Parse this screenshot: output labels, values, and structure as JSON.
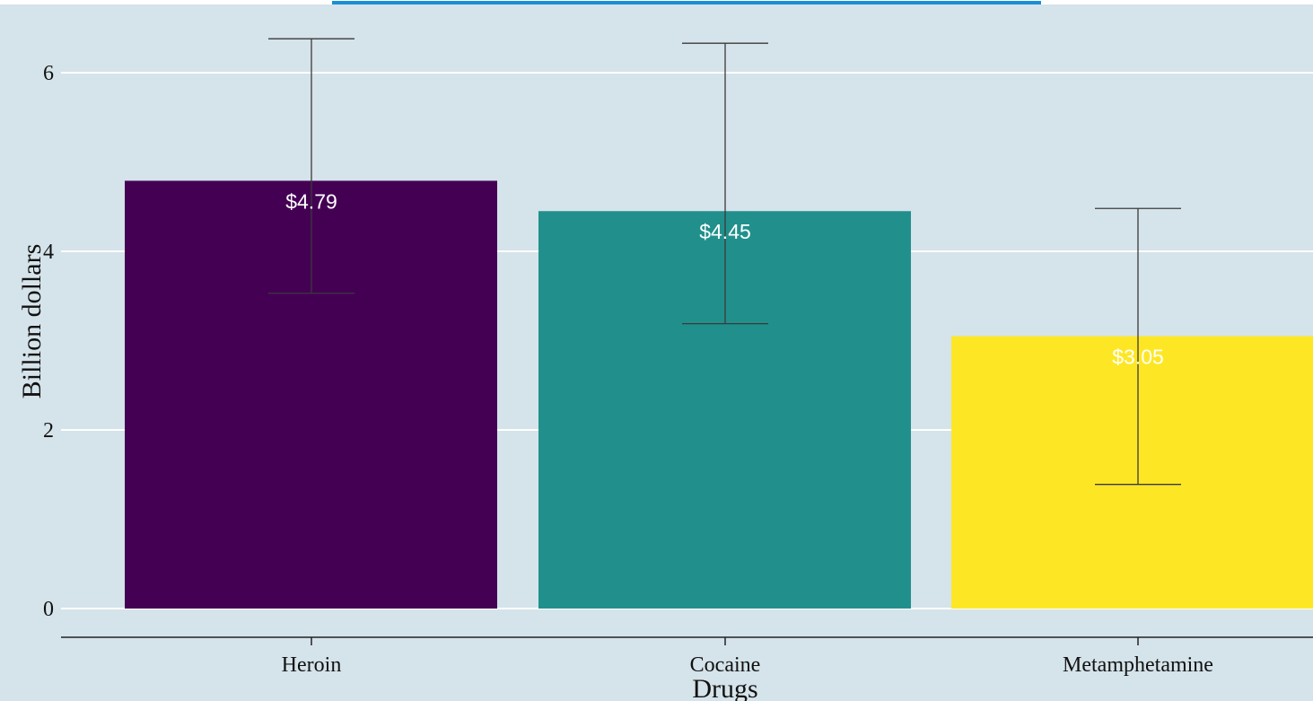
{
  "chart_data": {
    "type": "bar",
    "title": "",
    "xlabel": "Drugs",
    "ylabel": "Billion dollars",
    "ylim": [
      -0.33,
      6.7
    ],
    "yticks": [
      0,
      2,
      4,
      6
    ],
    "grid": true,
    "categories": [
      "Heroin",
      "Cocaine",
      "Metamphetamine"
    ],
    "values": [
      4.79,
      4.45,
      3.05
    ],
    "error_low": [
      3.53,
      3.19,
      1.39
    ],
    "error_high": [
      6.38,
      6.33,
      4.48
    ],
    "data_labels": [
      "$4.79",
      "$4.45",
      "$3.05"
    ],
    "colors": [
      "#440154",
      "#21908c",
      "#fde725"
    ]
  }
}
